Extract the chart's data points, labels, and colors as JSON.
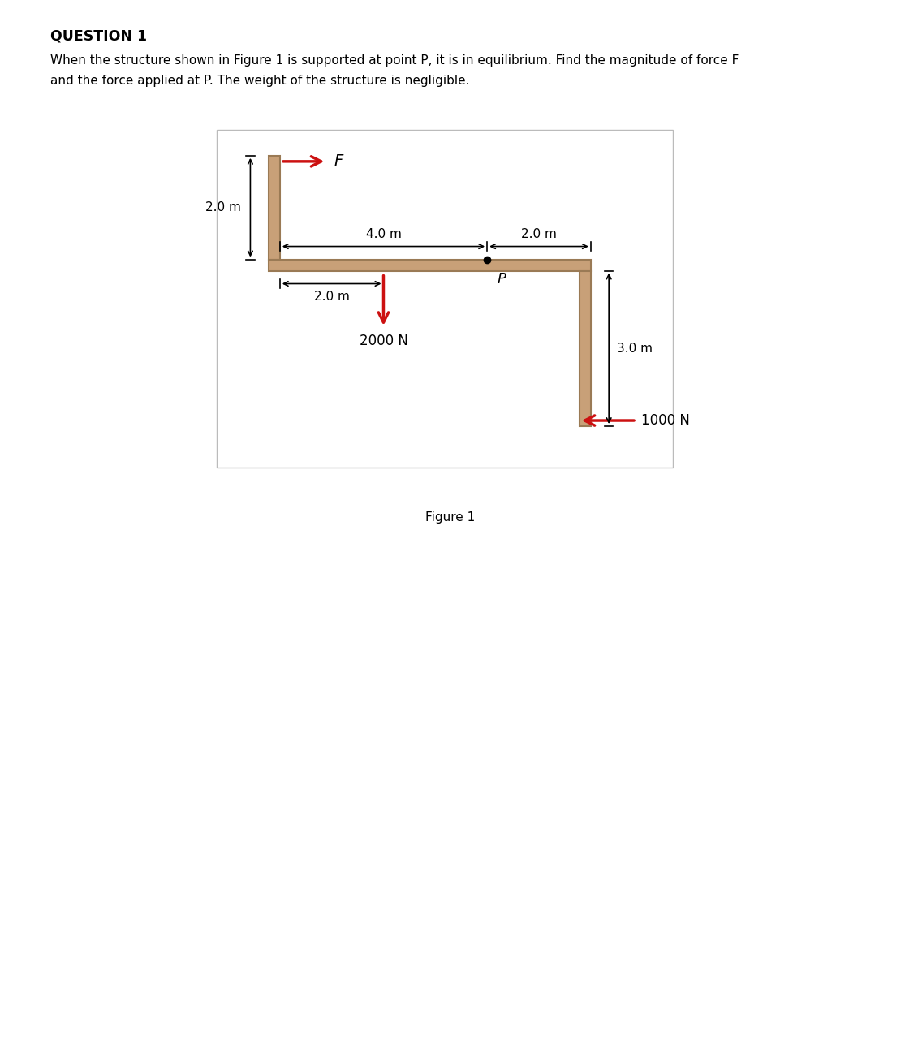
{
  "title": "QUESTION 1",
  "question_text_line1": "When the structure shown in Figure 1 is supported at point P, it is in equilibrium. Find the magnitude of force F",
  "question_text_line2": "and the force applied at P. The weight of the structure is negligible.",
  "figure_caption": "Figure 1",
  "structure_color": "#C8A078",
  "background_color": "#FFFFFF",
  "arrow_color": "#CC1111",
  "dim_color": "#000000",
  "label_F": "F",
  "label_P": "P",
  "label_2000N": "2000 N",
  "label_1000N": "1000 N",
  "label_20m_vert": "2.0 m",
  "label_40m_horiz": "4.0 m",
  "label_20m_horiz": "2.0 m",
  "label_20m_bot": "2.0 m",
  "label_30m_vert": "3.0 m",
  "beam_T": 0.22
}
